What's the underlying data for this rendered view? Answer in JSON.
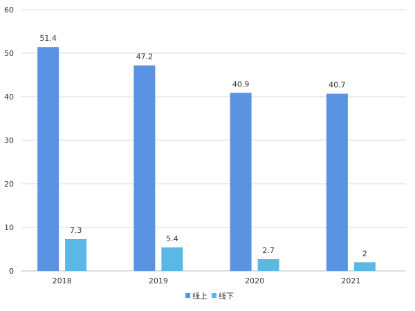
{
  "chart_data": {
    "type": "bar",
    "categories": [
      "2018",
      "2019",
      "2020",
      "2021"
    ],
    "series": [
      {
        "name": "线上",
        "values": [
          51.4,
          47.2,
          40.9,
          40.7
        ],
        "color": "#5b93e3"
      },
      {
        "name": "线下",
        "values": [
          7.3,
          5.4,
          2.7,
          2
        ],
        "color": "#59b8e6"
      }
    ],
    "data_labels": [
      [
        "51.4",
        "47.2",
        "40.9",
        "40.7"
      ],
      [
        "7.3",
        "5.4",
        "2.7",
        "2"
      ]
    ],
    "ylim": [
      0,
      60
    ],
    "yticks": [
      "0",
      "10",
      "20",
      "30",
      "40",
      "50",
      "60"
    ],
    "grid": true,
    "legend_position": "bottom-center"
  }
}
